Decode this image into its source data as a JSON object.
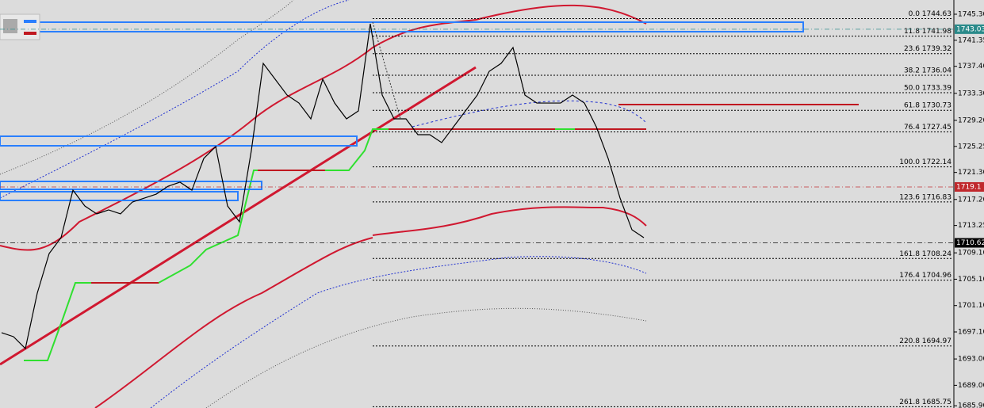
{
  "chart_data": {
    "type": "line",
    "ylim": [
      1685.56,
      1747.46
    ],
    "yticks": [
      {
        "value": 1745.3,
        "label": "1745.30"
      },
      {
        "value": 1741.35,
        "label": "1741.35"
      },
      {
        "value": 1737.4,
        "label": "1737.40"
      },
      {
        "value": 1733.3,
        "label": "1733.30"
      },
      {
        "value": 1729.2,
        "label": "1729.20"
      },
      {
        "value": 1725.25,
        "label": "1725.25"
      },
      {
        "value": 1721.3,
        "label": "1721.30"
      },
      {
        "value": 1717.2,
        "label": "1717.20"
      },
      {
        "value": 1713.25,
        "label": "1713.25"
      },
      {
        "value": 1709.1,
        "label": "1709.10"
      },
      {
        "value": 1705.1,
        "label": "1705.10"
      },
      {
        "value": 1701.1,
        "label": "1701.10"
      },
      {
        "value": 1697.1,
        "label": "1697.10"
      },
      {
        "value": 1693,
        "label": "1693.00"
      },
      {
        "value": 1689,
        "label": "1689.00"
      },
      {
        "value": 1685.9,
        "label": "1685.90"
      }
    ],
    "series": [
      {
        "color": "#000000",
        "values": [
          1696.98,
          1696.38,
          1694.58,
          1702.99,
          1709.0,
          1711.4,
          1718.61,
          1716.21,
          1715.01,
          1715.61,
          1715.01,
          1716.81,
          1717.41,
          1718.01,
          1719.21,
          1719.82,
          1718.61,
          1723.42,
          1725.22,
          1716.21,
          1713.81,
          1724.62,
          1737.84,
          1735.44,
          1733.04,
          1731.83,
          1729.43,
          1735.44,
          1731.83,
          1729.43,
          1730.63,
          1743.85,
          1733.04,
          1729.43,
          1729.43,
          1727.03,
          1727.03,
          1725.83,
          1728.23,
          1730.63,
          1733.04,
          1736.64,
          1737.84,
          1740.25,
          1733.04,
          1731.83,
          1731.83,
          1731.83,
          1733.04,
          1731.83,
          1728.23,
          1723.42,
          1717.41,
          1712.6,
          1711.4
        ]
      }
    ],
    "fib_levels": [
      {
        "level": "0.0",
        "price": 1744.63
      },
      {
        "level": "11.8",
        "price": 1741.98
      },
      {
        "level": "23.6",
        "price": 1739.32
      },
      {
        "level": "38.2",
        "price": 1736.04
      },
      {
        "level": "50.0",
        "price": 1733.39
      },
      {
        "level": "61.8",
        "price": 1730.73
      },
      {
        "level": "76.4",
        "price": 1727.45
      },
      {
        "level": "100.0",
        "price": 1722.14
      },
      {
        "level": "123.6",
        "price": 1716.83
      },
      {
        "level": "161.8",
        "price": 1708.24
      },
      {
        "level": "176.4",
        "price": 1704.96
      },
      {
        "level": "220.8",
        "price": 1694.97
      },
      {
        "level": "261.8",
        "price": 1685.75
      }
    ],
    "price_tags": [
      {
        "value": 1743.03,
        "color": "#2a8a8a"
      },
      {
        "value": 1719.1,
        "color": "#c0282c"
      },
      {
        "value": 1710.62,
        "color": "#000000"
      }
    ]
  }
}
